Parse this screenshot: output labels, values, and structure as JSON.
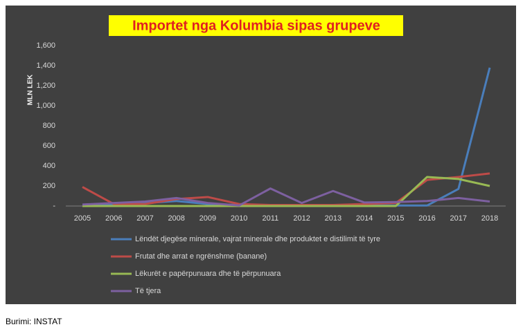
{
  "chart_data": {
    "type": "line",
    "title": "Importet nga Kolumbia sipas grupeve",
    "y_label": "MLN LEK",
    "categories": [
      "2005",
      "2006",
      "2007",
      "2008",
      "2009",
      "2010",
      "2011",
      "2012",
      "2013",
      "2014",
      "2015",
      "2016",
      "2017",
      "2018"
    ],
    "series": [
      {
        "name": "Lëndët djegëse minerale, vajrat minerale dhe produktet e distilimit të tyre",
        "color": "#4a7ebb",
        "values": [
          10,
          20,
          30,
          50,
          20,
          10,
          5,
          5,
          5,
          5,
          5,
          5,
          170,
          1380
        ]
      },
      {
        "name": "Frutat dhe arrat e ngrënshme (banane)",
        "color": "#be4b48",
        "values": [
          190,
          20,
          20,
          70,
          90,
          20,
          10,
          10,
          10,
          20,
          30,
          260,
          290,
          325
        ]
      },
      {
        "name": "Lëkurët e papërpunuara dhe të përpunuara",
        "color": "#98b954",
        "values": [
          0,
          0,
          0,
          0,
          0,
          0,
          0,
          0,
          0,
          0,
          0,
          290,
          270,
          200
        ]
      },
      {
        "name": "Të tjera",
        "color": "#7d60a0",
        "values": [
          15,
          30,
          45,
          80,
          30,
          5,
          175,
          30,
          150,
          35,
          40,
          50,
          80,
          45
        ]
      }
    ],
    "ylim": [
      0,
      1600
    ],
    "yticks": [
      {
        "value": 0,
        "label": "-"
      },
      200,
      400,
      600,
      800,
      {
        "value": 1000,
        "label": "1,000"
      },
      {
        "value": 1200,
        "label": "1,200"
      },
      {
        "value": 1400,
        "label": "1,400"
      },
      {
        "value": 1600,
        "label": "1,600"
      }
    ],
    "grid": false
  },
  "source": "Burimi: INSTAT"
}
